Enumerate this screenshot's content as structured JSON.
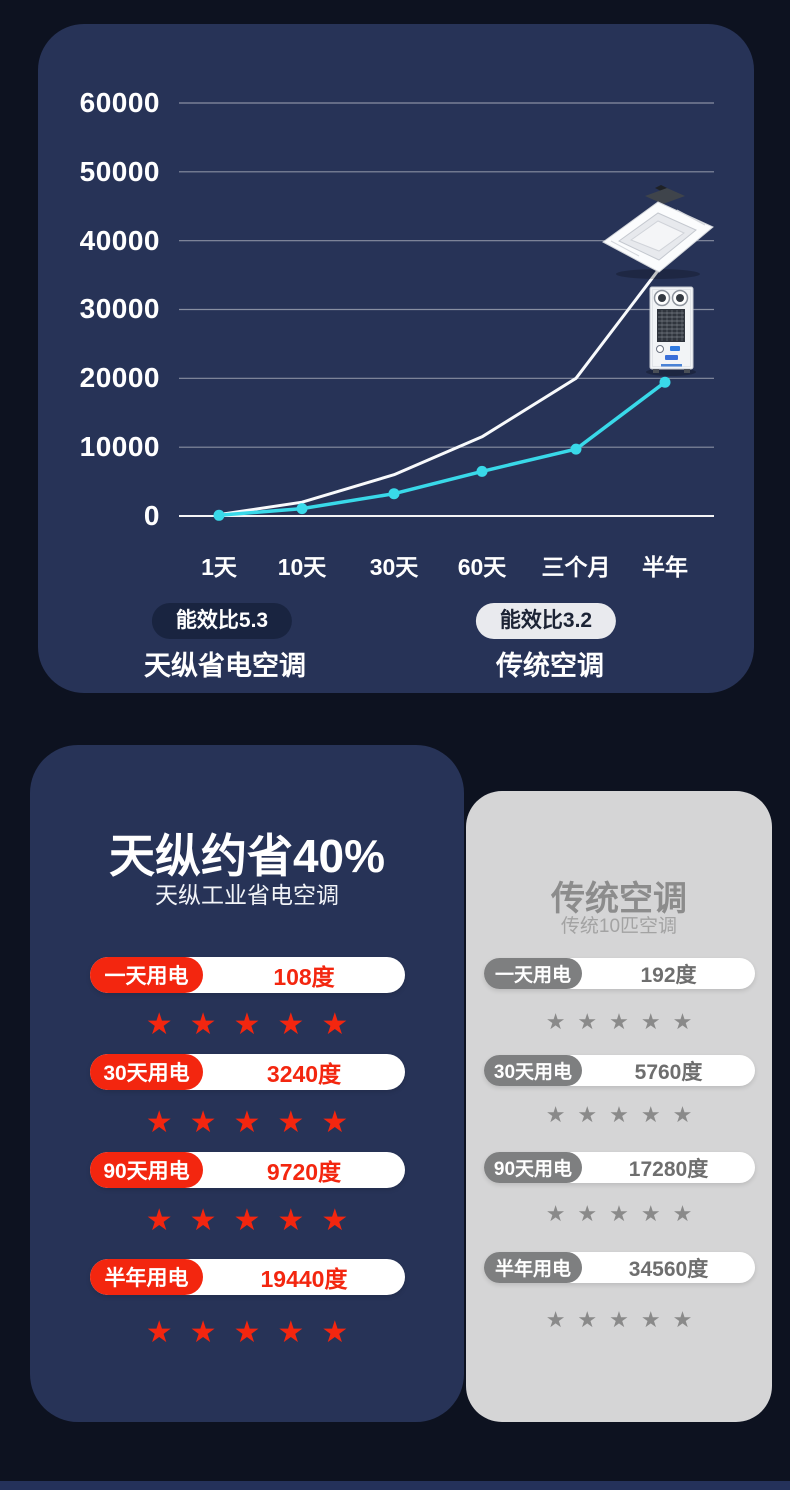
{
  "chart_data": {
    "type": "line",
    "title": "",
    "x_categories": [
      "1天",
      "10天",
      "30天",
      "60天",
      "三个月",
      "半年"
    ],
    "y_ticks": [
      60000,
      50000,
      40000,
      30000,
      20000,
      10000,
      0
    ],
    "ylim": [
      0,
      60000
    ],
    "grid": true,
    "legend_position": "bottom",
    "series": [
      {
        "name": "传统空调",
        "badge": "能效比3.2",
        "color": "#f8fafc",
        "markers": false,
        "values": [
          192,
          1920,
          5760,
          11520,
          17280,
          34560
        ],
        "plotted_approx": [
          200,
          2000,
          6000,
          11500,
          20000,
          37000
        ]
      },
      {
        "name": "天纵省电空调",
        "badge": "能效比5.3",
        "color": "#39d9e9",
        "markers": true,
        "values": [
          108,
          1080,
          3240,
          6480,
          9720,
          19440
        ],
        "plotted_approx": [
          108,
          1080,
          3240,
          6480,
          9720,
          19440
        ]
      }
    ],
    "annotations": [
      "ceiling-cassette air conditioner image at white line end",
      "floor-standing air conditioner image above cyan line end"
    ]
  },
  "legend": {
    "left": {
      "badge": "能效比5.3",
      "label": "天纵省电空调"
    },
    "right": {
      "badge": "能效比3.2",
      "label": "传统空调"
    }
  },
  "comparison": {
    "left_card": {
      "title": "天纵约省40%",
      "subtitle": "天纵工业省电空调",
      "accent_color": "#f3260f",
      "rows": [
        {
          "label": "一天用电",
          "value": "108度",
          "stars": 5
        },
        {
          "label": "30天用电",
          "value": "3240度",
          "stars": 5
        },
        {
          "label": "90天用电",
          "value": "9720度",
          "stars": 5
        },
        {
          "label": "半年用电",
          "value": "19440度",
          "stars": 5
        }
      ]
    },
    "right_card": {
      "title": "传统空调",
      "subtitle": "传统10匹空调",
      "accent_color": "#7e7f80",
      "rows": [
        {
          "label": "一天用电",
          "value": "192度",
          "stars": 5
        },
        {
          "label": "30天用电",
          "value": "5760度",
          "stars": 5
        },
        {
          "label": "90天用电",
          "value": "17280度",
          "stars": 5
        },
        {
          "label": "半年用电",
          "value": "34560度",
          "stars": 5
        }
      ]
    }
  },
  "colors": {
    "page_bg": "#0d1220",
    "panel_navy": "#273357",
    "card_gray": "#d5d5d6",
    "line_cyan": "#39d9e9",
    "line_white": "#f8fafc",
    "accent_red": "#f3260f",
    "pill_gray": "#7e7f80",
    "badge_dark": "#192440",
    "badge_light": "#e9eaee"
  },
  "star_char": "★"
}
